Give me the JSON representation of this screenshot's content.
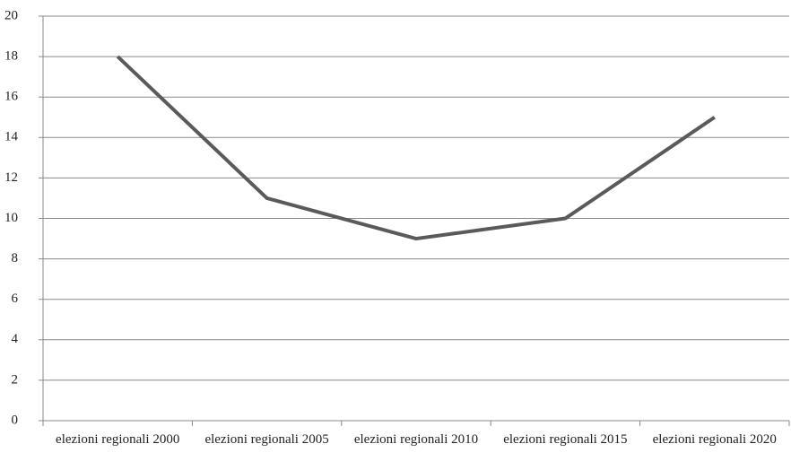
{
  "chart_data": {
    "type": "line",
    "categories": [
      "elezioni regionali 2000",
      "elezioni regionali 2005",
      "elezioni regionali 2010",
      "elezioni regionali 2015",
      "elezioni regionali 2020"
    ],
    "series": [
      {
        "color": "#5a5a5a",
        "values": [
          18,
          11,
          9,
          10,
          15
        ]
      }
    ],
    "ylim": [
      0,
      20
    ],
    "yticks": [
      0,
      2,
      4,
      6,
      8,
      10,
      12,
      14,
      16,
      18,
      20
    ],
    "grid": true
  }
}
